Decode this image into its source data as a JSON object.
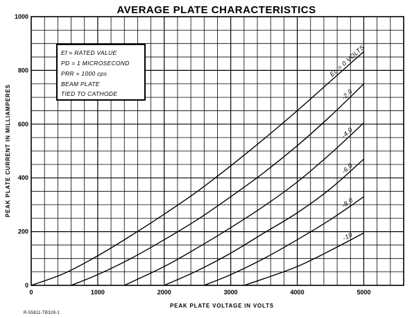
{
  "chart_data": {
    "type": "line",
    "title": "AVERAGE PLATE CHARACTERISTICS",
    "xlabel": "PEAK PLATE VOLTAGE IN VOLTS",
    "ylabel": "PEAK PLATE CURRENT IN MILLIAMPERES",
    "xlim": [
      0,
      5600
    ],
    "ylim": [
      0,
      1000
    ],
    "x_ticks": [
      0,
      1000,
      2000,
      3000,
      4000,
      5000
    ],
    "y_ticks": [
      0,
      200,
      400,
      600,
      800,
      1000
    ],
    "grid": true,
    "conditions": [
      "Ef = RATED VALUE",
      "PD = 1 MICROSECOND",
      "PRR = 1000 cps",
      "BEAM PLATE",
      "TIED TO CATHODE"
    ],
    "series": [
      {
        "name": "Ec = 0 VOLTS",
        "x": [
          0,
          500,
          1000,
          1500,
          2000,
          2500,
          3000,
          3500,
          4000,
          4500,
          5000
        ],
        "y": [
          0,
          45,
          110,
          185,
          265,
          350,
          445,
          545,
          650,
          760,
          870
        ]
      },
      {
        "name": "-2.0",
        "x": [
          600,
          1000,
          1500,
          2000,
          2500,
          3000,
          3500,
          4000,
          4500,
          5000
        ],
        "y": [
          0,
          40,
          100,
          170,
          245,
          330,
          420,
          520,
          630,
          750
        ]
      },
      {
        "name": "-4.0",
        "x": [
          1400,
          2000,
          2500,
          3000,
          3500,
          4000,
          4500,
          5000
        ],
        "y": [
          0,
          70,
          140,
          215,
          295,
          385,
          490,
          605
        ]
      },
      {
        "name": "-6.0",
        "x": [
          2000,
          2500,
          3000,
          3500,
          4000,
          4500,
          5000
        ],
        "y": [
          0,
          55,
          120,
          195,
          270,
          360,
          470
        ]
      },
      {
        "name": "-8.0",
        "x": [
          2600,
          3000,
          3500,
          4000,
          4500,
          5000
        ],
        "y": [
          0,
          40,
          100,
          170,
          245,
          330
        ]
      },
      {
        "name": "-10",
        "x": [
          3200,
          3500,
          4000,
          4500,
          5000
        ],
        "y": [
          0,
          25,
          70,
          130,
          195
        ]
      }
    ],
    "reference": "R-55811-TB328-1"
  }
}
